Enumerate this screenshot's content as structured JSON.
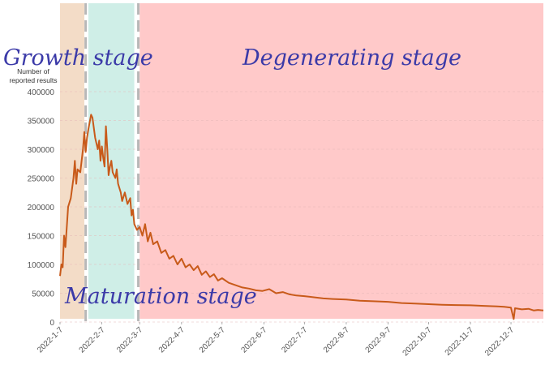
{
  "chart_data": {
    "type": "line",
    "title": "",
    "ylabel_lines": [
      "Number of",
      "reported results"
    ],
    "xlabel": "",
    "ylim": [
      0,
      400000
    ],
    "y_ticks": [
      "0",
      "50000",
      "100000",
      "150000",
      "200000",
      "250000",
      "300000",
      "350000",
      "400000"
    ],
    "x_tick_labels": [
      "2022-1-7",
      "2022-2-7",
      "2022-3-7",
      "2022-4-7",
      "2022-5-7",
      "2022-6-7",
      "2022-7-7",
      "2022-8-7",
      "2022-9-7",
      "2022-10-7",
      "2022-11-7",
      "2022-12-7"
    ],
    "grid": "horizontal dashed",
    "line_color": "#c85a1a",
    "stages": [
      {
        "name": "Growth stage",
        "start": "2022-1-7",
        "end": "2022-1-25",
        "color": "#f3dcc7"
      },
      {
        "name": "Maturation stage",
        "start": "2022-1-28",
        "end": "2022-3-3",
        "color": "#cfeee7"
      },
      {
        "name": "Degenerating stage",
        "start": "2022-3-7",
        "end": "2022-12-31",
        "color": "#ffc9c9"
      }
    ],
    "stage_dividers": [
      "2022-1-26",
      "2022-3-6"
    ],
    "series": [
      {
        "points": [
          [
            "2022-1-7",
            80000
          ],
          [
            "2022-1-8",
            100000
          ],
          [
            "2022-1-9",
            95000
          ],
          [
            "2022-1-10",
            150000
          ],
          [
            "2022-1-11",
            130000
          ],
          [
            "2022-1-13",
            200000
          ],
          [
            "2022-1-15",
            215000
          ],
          [
            "2022-1-17",
            250000
          ],
          [
            "2022-1-18",
            280000
          ],
          [
            "2022-1-19",
            240000
          ],
          [
            "2022-1-20",
            265000
          ],
          [
            "2022-1-22",
            260000
          ],
          [
            "2022-1-24",
            300000
          ],
          [
            "2022-1-25",
            330000
          ],
          [
            "2022-1-26",
            295000
          ],
          [
            "2022-1-27",
            320000
          ],
          [
            "2022-1-28",
            335000
          ],
          [
            "2022-1-30",
            360000
          ],
          [
            "2022-1-31",
            355000
          ],
          [
            "2022-2-2",
            320000
          ],
          [
            "2022-2-4",
            300000
          ],
          [
            "2022-2-5",
            315000
          ],
          [
            "2022-2-6",
            280000
          ],
          [
            "2022-2-7",
            305000
          ],
          [
            "2022-2-8",
            285000
          ],
          [
            "2022-2-9",
            270000
          ],
          [
            "2022-2-10",
            340000
          ],
          [
            "2022-2-11",
            300000
          ],
          [
            "2022-2-12",
            255000
          ],
          [
            "2022-2-13",
            270000
          ],
          [
            "2022-2-14",
            280000
          ],
          [
            "2022-2-15",
            260000
          ],
          [
            "2022-2-17",
            250000
          ],
          [
            "2022-2-18",
            265000
          ],
          [
            "2022-2-19",
            240000
          ],
          [
            "2022-2-21",
            225000
          ],
          [
            "2022-2-22",
            210000
          ],
          [
            "2022-2-24",
            225000
          ],
          [
            "2022-2-26",
            205000
          ],
          [
            "2022-2-28",
            215000
          ],
          [
            "2022-3-1",
            185000
          ],
          [
            "2022-3-2",
            195000
          ],
          [
            "2022-3-3",
            170000
          ],
          [
            "2022-3-5",
            160000
          ],
          [
            "2022-3-7",
            165000
          ],
          [
            "2022-3-9",
            150000
          ],
          [
            "2022-3-11",
            170000
          ],
          [
            "2022-3-13",
            140000
          ],
          [
            "2022-3-15",
            155000
          ],
          [
            "2022-3-17",
            135000
          ],
          [
            "2022-3-20",
            140000
          ],
          [
            "2022-3-23",
            120000
          ],
          [
            "2022-3-26",
            125000
          ],
          [
            "2022-3-29",
            110000
          ],
          [
            "2022-4-1",
            115000
          ],
          [
            "2022-4-4",
            100000
          ],
          [
            "2022-4-7",
            110000
          ],
          [
            "2022-4-10",
            95000
          ],
          [
            "2022-4-13",
            100000
          ],
          [
            "2022-4-16",
            90000
          ],
          [
            "2022-4-19",
            97000
          ],
          [
            "2022-4-22",
            82000
          ],
          [
            "2022-4-25",
            88000
          ],
          [
            "2022-4-28",
            78000
          ],
          [
            "2022-5-1",
            83000
          ],
          [
            "2022-5-4",
            72000
          ],
          [
            "2022-5-7",
            76000
          ],
          [
            "2022-5-12",
            68000
          ],
          [
            "2022-5-17",
            64000
          ],
          [
            "2022-5-22",
            60000
          ],
          [
            "2022-5-27",
            58000
          ],
          [
            "2022-6-1",
            55000
          ],
          [
            "2022-6-6",
            54000
          ],
          [
            "2022-6-11",
            57000
          ],
          [
            "2022-6-16",
            50000
          ],
          [
            "2022-6-21",
            52000
          ],
          [
            "2022-6-26",
            48000
          ],
          [
            "2022-7-1",
            46000
          ],
          [
            "2022-7-7",
            45000
          ],
          [
            "2022-7-14",
            43000
          ],
          [
            "2022-7-21",
            41000
          ],
          [
            "2022-7-28",
            40000
          ],
          [
            "2022-8-7",
            39000
          ],
          [
            "2022-8-17",
            37000
          ],
          [
            "2022-8-27",
            36000
          ],
          [
            "2022-9-7",
            35000
          ],
          [
            "2022-9-17",
            33000
          ],
          [
            "2022-9-27",
            32000
          ],
          [
            "2022-10-7",
            31000
          ],
          [
            "2022-10-17",
            30000
          ],
          [
            "2022-10-27",
            29500
          ],
          [
            "2022-11-7",
            29000
          ],
          [
            "2022-11-17",
            28000
          ],
          [
            "2022-11-27",
            27000
          ],
          [
            "2022-12-2",
            26500
          ],
          [
            "2022-12-7",
            25000
          ],
          [
            "2022-12-9",
            5000
          ],
          [
            "2022-12-10",
            24000
          ],
          [
            "2022-12-15",
            22000
          ],
          [
            "2022-12-20",
            23000
          ],
          [
            "2022-12-24",
            20000
          ],
          [
            "2022-12-27",
            21000
          ],
          [
            "2022-12-31",
            20000
          ]
        ]
      }
    ]
  }
}
